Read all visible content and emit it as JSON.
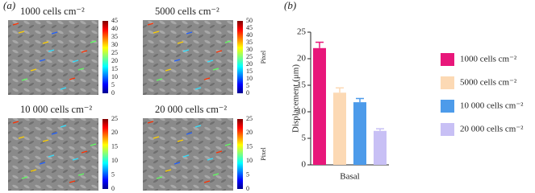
{
  "panel_a": {
    "label": "(a)",
    "panels": [
      {
        "title": "1000 cells cm⁻²",
        "colorbar_ticks": [
          0,
          5,
          10,
          15,
          20,
          25,
          30,
          35,
          40,
          45
        ]
      },
      {
        "title": "5000 cells cm⁻²",
        "colorbar_ticks": [
          0,
          5,
          10,
          15,
          20,
          25,
          30,
          35,
          40,
          45,
          50
        ],
        "colorbar_label": "Pixel"
      },
      {
        "title": "10 000 cells cm⁻²",
        "colorbar_ticks": [
          0,
          5,
          10,
          15,
          20,
          25
        ]
      },
      {
        "title": "20 000 cells cm⁻²",
        "colorbar_ticks": [
          0,
          5,
          10,
          15,
          20,
          25
        ],
        "colorbar_label": "Pixel"
      }
    ]
  },
  "chart_data": {
    "type": "bar",
    "panel_label": "(b)",
    "ylabel": "Displacement (μm)",
    "categories": [
      "Basal"
    ],
    "series": [
      {
        "name": "1000 cells cm⁻²",
        "color": "#e8177a",
        "values": [
          22
        ],
        "errors": [
          1.1
        ]
      },
      {
        "name": "5000 cells cm⁻²",
        "color": "#fcd9b4",
        "values": [
          13.6
        ],
        "errors": [
          0.9
        ]
      },
      {
        "name": "10 000 cells cm⁻²",
        "color": "#4d9bea",
        "values": [
          11.8
        ],
        "errors": [
          0.7
        ]
      },
      {
        "name": "20 000 cells cm⁻²",
        "color": "#c8c0f5",
        "values": [
          6.4
        ],
        "errors": [
          0.4
        ]
      }
    ],
    "ylim": [
      0,
      25
    ],
    "yticks": [
      0,
      5,
      10,
      15,
      20,
      25
    ]
  }
}
